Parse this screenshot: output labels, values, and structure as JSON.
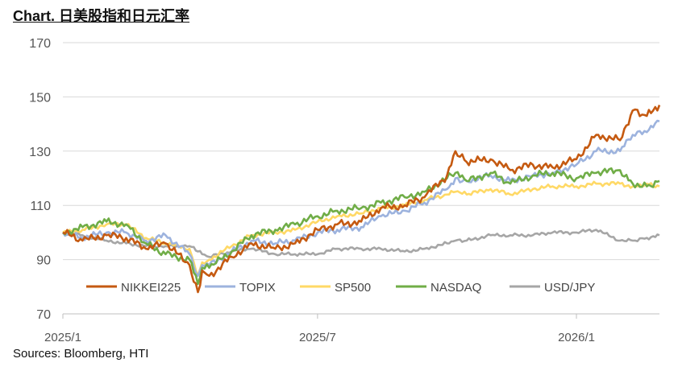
{
  "title": "Chart. 日美股指和日元汇率",
  "source": "Sources: Bloomberg, HTI",
  "chart_data": {
    "type": "line",
    "title": "Chart. 日美股指和日元汇率",
    "xlabel": "",
    "ylabel": "",
    "ylim": [
      70,
      170
    ],
    "yticks": [
      70,
      90,
      110,
      130,
      150,
      170
    ],
    "xlim": [
      "2025-01-01",
      "2026-03-01"
    ],
    "xticks": [
      {
        "date": "2025-01-01",
        "label": "2025/1"
      },
      {
        "date": "2025-07-01",
        "label": "2025/7"
      },
      {
        "date": "2026-01-01",
        "label": "2026/1"
      }
    ],
    "grid": "horizontal",
    "legend_position": "bottom-inside",
    "series": [
      {
        "name": "NIKKEI225",
        "color": "#c55a11",
        "x": [
          "2025-01-01",
          "2025-01-15",
          "2025-02-01",
          "2025-02-15",
          "2025-03-01",
          "2025-03-15",
          "2025-04-01",
          "2025-04-07",
          "2025-04-10",
          "2025-04-15",
          "2025-05-01",
          "2025-05-15",
          "2025-06-01",
          "2025-06-15",
          "2025-07-01",
          "2025-07-15",
          "2025-08-01",
          "2025-08-15",
          "2025-09-01",
          "2025-09-15",
          "2025-10-01",
          "2025-10-07",
          "2025-10-15",
          "2025-11-01",
          "2025-11-15",
          "2025-12-01",
          "2025-12-15",
          "2026-01-01",
          "2026-01-15",
          "2026-02-01",
          "2026-02-10",
          "2026-02-20",
          "2026-03-01"
        ],
        "y": [
          100,
          97,
          99,
          98,
          94,
          96,
          88,
          78,
          86,
          84,
          91,
          96,
          94,
          96,
          101,
          103,
          104,
          109,
          110,
          113,
          121,
          130,
          126,
          127,
          123,
          125,
          124,
          127,
          136,
          134,
          145,
          143,
          147
        ]
      },
      {
        "name": "TOPIX",
        "color": "#9db3de",
        "x": [
          "2025-01-01",
          "2025-01-15",
          "2025-02-01",
          "2025-02-15",
          "2025-03-01",
          "2025-03-15",
          "2025-04-01",
          "2025-04-07",
          "2025-04-10",
          "2025-04-15",
          "2025-05-01",
          "2025-05-15",
          "2025-06-01",
          "2025-06-15",
          "2025-07-01",
          "2025-07-15",
          "2025-08-01",
          "2025-08-15",
          "2025-09-01",
          "2025-09-15",
          "2025-10-01",
          "2025-10-07",
          "2025-10-15",
          "2025-11-01",
          "2025-11-15",
          "2025-12-01",
          "2025-12-15",
          "2026-01-01",
          "2026-01-15",
          "2026-02-01",
          "2026-02-10",
          "2026-02-20",
          "2026-03-01"
        ],
        "y": [
          100,
          98,
          100,
          100,
          97,
          99,
          92,
          84,
          88,
          88,
          93,
          97,
          96,
          97,
          100,
          101,
          102,
          106,
          108,
          111,
          116,
          120,
          119,
          121,
          119,
          121,
          122,
          125,
          130,
          130,
          136,
          137,
          141
        ]
      },
      {
        "name": "SP500",
        "color": "#ffd966",
        "x": [
          "2025-01-01",
          "2025-01-15",
          "2025-02-01",
          "2025-02-15",
          "2025-03-01",
          "2025-03-15",
          "2025-04-01",
          "2025-04-07",
          "2025-04-10",
          "2025-04-15",
          "2025-05-01",
          "2025-05-15",
          "2025-06-01",
          "2025-06-15",
          "2025-07-01",
          "2025-07-15",
          "2025-08-01",
          "2025-08-15",
          "2025-09-01",
          "2025-09-15",
          "2025-10-01",
          "2025-10-07",
          "2025-10-15",
          "2025-11-01",
          "2025-11-15",
          "2025-12-01",
          "2025-12-15",
          "2026-01-01",
          "2026-01-15",
          "2026-02-01",
          "2026-02-10",
          "2026-02-20",
          "2026-03-01"
        ],
        "y": [
          100,
          101,
          103,
          103,
          98,
          96,
          94,
          84,
          89,
          90,
          95,
          99,
          100,
          101,
          104,
          106,
          107,
          109,
          110,
          112,
          114,
          115,
          114,
          116,
          114,
          116,
          117,
          117,
          118,
          118,
          117,
          118,
          117
        ]
      },
      {
        "name": "NASDAQ",
        "color": "#70ad47",
        "x": [
          "2025-01-01",
          "2025-01-15",
          "2025-02-01",
          "2025-02-15",
          "2025-03-01",
          "2025-03-15",
          "2025-04-01",
          "2025-04-07",
          "2025-04-10",
          "2025-04-15",
          "2025-05-01",
          "2025-05-15",
          "2025-06-01",
          "2025-06-15",
          "2025-07-01",
          "2025-07-15",
          "2025-08-01",
          "2025-08-15",
          "2025-09-01",
          "2025-09-15",
          "2025-10-01",
          "2025-10-07",
          "2025-10-15",
          "2025-11-01",
          "2025-11-15",
          "2025-12-01",
          "2025-12-15",
          "2026-01-01",
          "2026-01-15",
          "2026-02-01",
          "2026-02-10",
          "2026-02-20",
          "2026-03-01"
        ],
        "y": [
          100,
          102,
          104,
          103,
          96,
          92,
          90,
          81,
          87,
          87,
          93,
          99,
          101,
          103,
          106,
          108,
          109,
          111,
          113,
          115,
          120,
          122,
          119,
          122,
          118,
          121,
          122,
          120,
          122,
          123,
          118,
          117,
          119
        ]
      },
      {
        "name": "USD/JPY",
        "color": "#a6a6a6",
        "x": [
          "2025-01-01",
          "2025-01-15",
          "2025-02-01",
          "2025-02-15",
          "2025-03-01",
          "2025-03-15",
          "2025-04-01",
          "2025-04-07",
          "2025-04-10",
          "2025-04-15",
          "2025-05-01",
          "2025-05-15",
          "2025-06-01",
          "2025-06-15",
          "2025-07-01",
          "2025-07-15",
          "2025-08-01",
          "2025-08-15",
          "2025-09-01",
          "2025-09-15",
          "2025-10-01",
          "2025-10-07",
          "2025-10-15",
          "2025-11-01",
          "2025-11-15",
          "2025-12-01",
          "2025-12-15",
          "2026-01-01",
          "2026-01-15",
          "2026-02-01",
          "2026-02-10",
          "2026-02-20",
          "2026-03-01"
        ],
        "y": [
          100,
          99,
          97,
          96,
          95,
          95,
          95,
          93,
          92,
          91,
          93,
          94,
          92,
          92,
          92,
          94,
          94,
          94,
          93,
          94,
          96,
          97,
          97,
          99,
          99,
          99,
          100,
          100,
          101,
          97,
          97,
          98,
          99
        ]
      }
    ]
  }
}
